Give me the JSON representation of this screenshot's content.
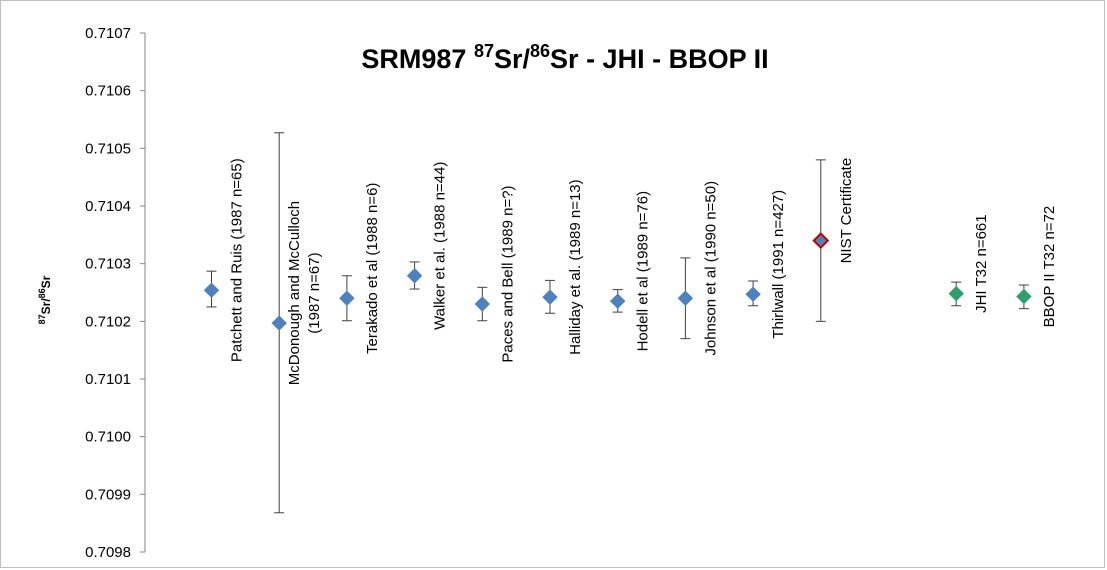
{
  "chart_data": {
    "type": "scatter",
    "title": "SRM987 87Sr/86Sr - JHI - BBOP II",
    "ylabel": "87Sr/86Sr",
    "ylim": [
      0.7098,
      0.7107
    ],
    "y_ticks": [
      "0.7098",
      "0.7099",
      "0.7100",
      "0.7101",
      "0.7102",
      "0.7103",
      "0.7104",
      "0.7105",
      "0.7106",
      "0.7107"
    ],
    "grid": false,
    "legend": "none",
    "points": [
      {
        "index": 1,
        "label": "Patchett and Ruis (1987 n=65)",
        "y": 0.710254,
        "err_low": 0.710225,
        "err_high": 0.710287,
        "color": "#4f81bd"
      },
      {
        "index": 2,
        "label": "McDonough and McCulloch (1987 n=67)",
        "y": 0.710197,
        "err_low": 0.709868,
        "err_high": 0.710527,
        "color": "#4f81bd"
      },
      {
        "index": 3,
        "label": "Terakado et al (1988 n=6)",
        "y": 0.71024,
        "err_low": 0.710201,
        "err_high": 0.710279,
        "color": "#4f81bd"
      },
      {
        "index": 4,
        "label": "Walker et al. (1988 n=44)",
        "y": 0.710279,
        "err_low": 0.710256,
        "err_high": 0.710303,
        "color": "#4f81bd"
      },
      {
        "index": 5,
        "label": "Paces and Bell (1989 n=?)",
        "y": 0.71023,
        "err_low": 0.710201,
        "err_high": 0.710259,
        "color": "#4f81bd"
      },
      {
        "index": 6,
        "label": "Halliday et al. (1989 n=13)",
        "y": 0.710242,
        "err_low": 0.710214,
        "err_high": 0.710271,
        "color": "#4f81bd"
      },
      {
        "index": 7,
        "label": "Hodell et al (1989 n=76)",
        "y": 0.710235,
        "err_low": 0.710216,
        "err_high": 0.710255,
        "color": "#4f81bd"
      },
      {
        "index": 8,
        "label": "Johnson et al (1990 n=50)",
        "y": 0.71024,
        "err_low": 0.71017,
        "err_high": 0.71031,
        "color": "#4f81bd"
      },
      {
        "index": 9,
        "label": "Thirlwall (1991 n=427)",
        "y": 0.710247,
        "err_low": 0.710227,
        "err_high": 0.71027,
        "color": "#4f81bd"
      },
      {
        "index": 10,
        "label": "NIST Certificate",
        "y": 0.71034,
        "err_low": 0.7102,
        "err_high": 0.71048,
        "color": "#4f81bd",
        "edge": "#c00000"
      },
      {
        "index": 12,
        "label": "JHI T32 n=661",
        "y": 0.710248,
        "err_low": 0.710227,
        "err_high": 0.710268,
        "color": "#2e9e6e"
      },
      {
        "index": 13,
        "label": "BBOP II T32 n=72",
        "y": 0.710243,
        "err_low": 0.710222,
        "err_high": 0.710263,
        "color": "#2e9e6e"
      }
    ]
  }
}
